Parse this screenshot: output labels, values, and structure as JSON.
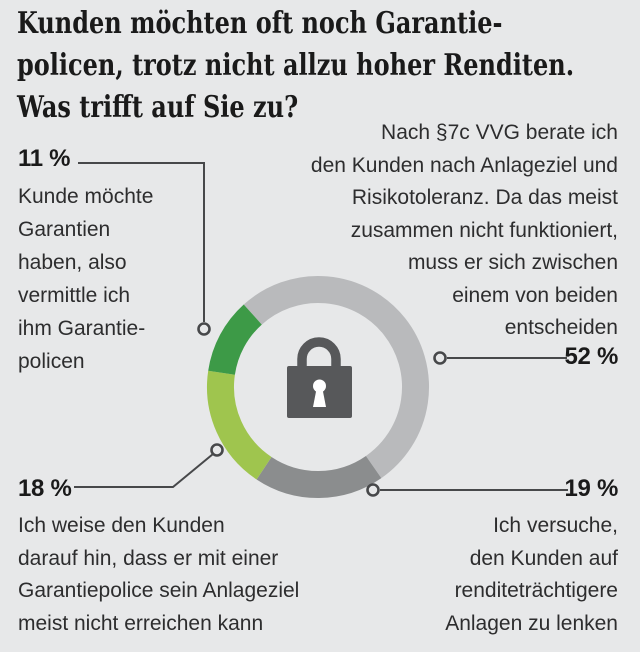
{
  "page": {
    "background": "#e7e8e9"
  },
  "title": {
    "lines": [
      "Kunden möchten oft noch Garantie-",
      "policen, trotz nicht allzu hoher Renditen.",
      "Was trifft auf Sie zu?"
    ]
  },
  "chart_data": {
    "type": "pie",
    "subtype": "donut",
    "title": "Kunden möchten oft noch Garantiepolicen, trotz nicht allzu hoher Renditen. Was trifft auf Sie zu?",
    "unit": "%",
    "start_angle_deg": 318,
    "center_icon": "lock-icon",
    "segments": [
      {
        "value": 52,
        "color": "#b9babc",
        "label": "Nach §7c VVG berate ich den Kunden nach Anlageziel und Risikotoleranz. Da das meist zusammen nicht funktioniert, muss er sich zwischen einem von beiden entscheiden"
      },
      {
        "value": 19,
        "color": "#8b8d8e",
        "label": "Ich versuche, den Kunden auf renditeträchtigere Anlagen zu lenken"
      },
      {
        "value": 18,
        "color": "#9fc54e",
        "label": "Ich weise den Kunden darauf hin, dass er mit einer Garantiepolice sein Anlageziel meist nicht erreichen kann"
      },
      {
        "value": 11,
        "color": "#3d9a47",
        "label": "Kunde möchte Garantien haben, also vermittle ich ihm Garantiepolicen"
      }
    ]
  },
  "callouts": {
    "c11": {
      "pct": "11 %",
      "lines": [
        "Kunde möchte",
        "Garantien",
        "haben, also",
        "vermittle ich",
        "ihm Garantie-",
        "policen"
      ]
    },
    "c52": {
      "pct": "52 %",
      "lines": [
        "Nach §7c VVG berate ich",
        "den Kunden nach Anlageziel und",
        "Risikotoleranz. Da das meist",
        "zusammen nicht funktioniert,",
        "muss er sich zwischen",
        "einem von beiden",
        "entscheiden"
      ]
    },
    "c18": {
      "pct": "18 %",
      "lines": [
        "Ich weise den Kunden",
        "darauf hin, dass er mit einer",
        "Garantiepolice sein Anlageziel",
        "meist nicht erreichen kann"
      ]
    },
    "c19": {
      "pct": "19 %",
      "lines": [
        "Ich versuche,",
        "den Kunden auf",
        "renditeträchtigere",
        "Anlagen zu lenken"
      ]
    }
  },
  "colors": {
    "background": "#e7e8e9",
    "title_text": "#1a1a1a",
    "body_text": "#2d2d2e",
    "connector": "#47484a",
    "lock": "#57585a",
    "keyhole": "#ffffff",
    "segment_52": "#b9babc",
    "segment_19": "#8b8d8e",
    "segment_18": "#9fc54e",
    "segment_11": "#3d9a47"
  }
}
